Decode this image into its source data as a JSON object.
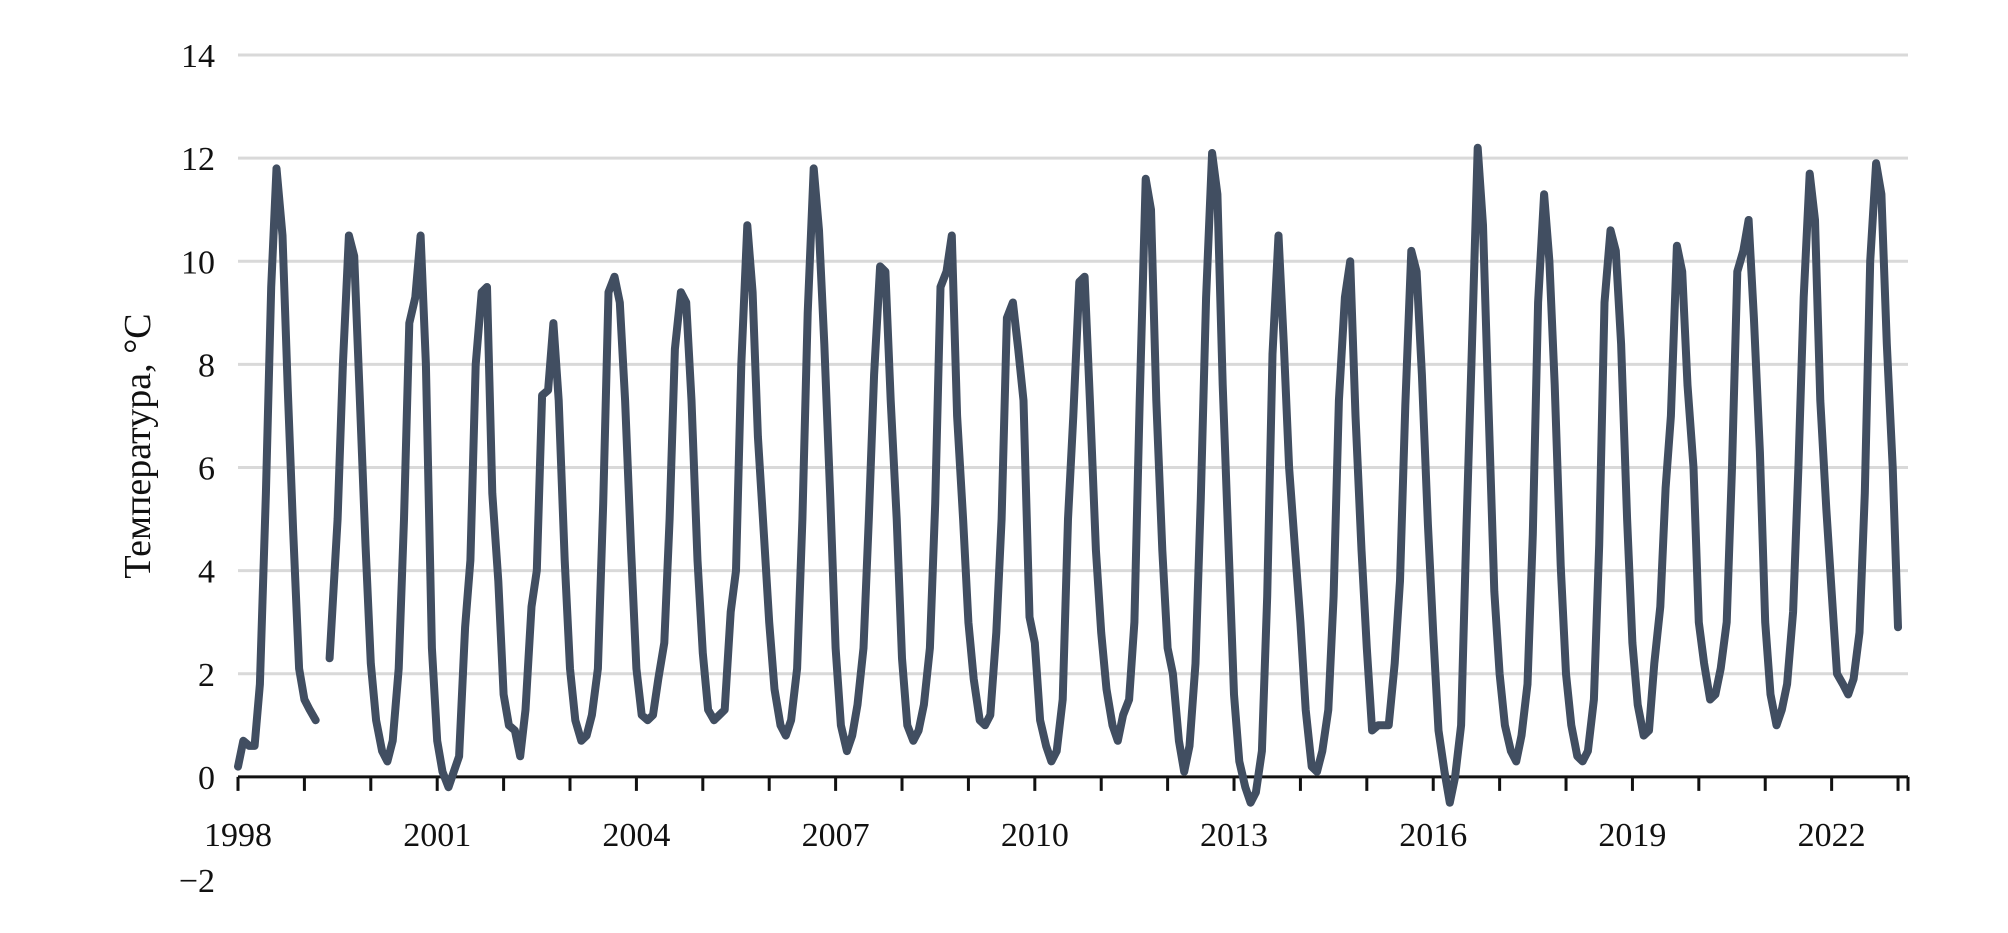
{
  "chart_data": {
    "type": "line",
    "ylabel": "Температура, °C",
    "xlabel": "",
    "title": "",
    "grid": true,
    "legend": "none",
    "ylim": [
      -2,
      14
    ],
    "yticks": [
      14,
      12,
      10,
      8,
      6,
      4,
      2,
      0,
      "−2"
    ],
    "xlim": [
      1998,
      2023.15
    ],
    "xticks": [
      "1998",
      "2001",
      "2004",
      "2007",
      "2010",
      "2013",
      "2016",
      "2019",
      "2022"
    ],
    "x_tick_years": [
      1998,
      2001,
      2004,
      2007,
      2010,
      2013,
      2016,
      2019,
      2022
    ],
    "series": [
      {
        "color": "#414e61",
        "points": [
          [
            1998.0,
            0.2
          ],
          [
            1998.08,
            0.7
          ],
          [
            1998.17,
            0.6
          ],
          [
            1998.25,
            0.6
          ],
          [
            1998.33,
            1.8
          ],
          [
            1998.42,
            5.5
          ],
          [
            1998.5,
            9.5
          ],
          [
            1998.58,
            11.8
          ],
          [
            1998.67,
            10.5
          ],
          [
            1998.75,
            7.5
          ],
          [
            1998.83,
            4.8
          ],
          [
            1998.92,
            2.1
          ],
          [
            1999.0,
            1.5
          ],
          [
            1999.08,
            1.3
          ],
          [
            1999.17,
            1.1
          ],
          null,
          [
            1999.38,
            2.3
          ],
          [
            1999.5,
            5.0
          ],
          [
            1999.58,
            8.0
          ],
          [
            1999.67,
            10.5
          ],
          [
            1999.75,
            10.1
          ],
          [
            1999.83,
            7.5
          ],
          [
            1999.92,
            4.5
          ],
          [
            2000.0,
            2.2
          ],
          [
            2000.08,
            1.1
          ],
          [
            2000.17,
            0.5
          ],
          [
            2000.25,
            0.3
          ],
          [
            2000.33,
            0.7
          ],
          [
            2000.42,
            2.1
          ],
          [
            2000.5,
            5.0
          ],
          [
            2000.58,
            8.8
          ],
          [
            2000.67,
            9.3
          ],
          [
            2000.75,
            10.5
          ],
          [
            2000.83,
            8.0
          ],
          [
            2000.92,
            2.5
          ],
          [
            2001.0,
            0.7
          ],
          [
            2001.08,
            0.1
          ],
          [
            2001.17,
            -0.2
          ],
          [
            2001.25,
            0.1
          ],
          [
            2001.33,
            0.4
          ],
          [
            2001.42,
            2.9
          ],
          [
            2001.5,
            4.2
          ],
          [
            2001.58,
            8.0
          ],
          [
            2001.67,
            9.4
          ],
          [
            2001.75,
            9.5
          ],
          [
            2001.83,
            5.5
          ],
          [
            2001.92,
            3.8
          ],
          [
            2002.0,
            1.6
          ],
          [
            2002.08,
            1.0
          ],
          [
            2002.17,
            0.9
          ],
          [
            2002.25,
            0.4
          ],
          [
            2002.33,
            1.3
          ],
          [
            2002.42,
            3.3
          ],
          [
            2002.5,
            4.0
          ],
          [
            2002.58,
            7.4
          ],
          [
            2002.67,
            7.5
          ],
          [
            2002.75,
            8.8
          ],
          [
            2002.83,
            7.3
          ],
          [
            2002.92,
            4.2
          ],
          [
            2003.0,
            2.1
          ],
          [
            2003.08,
            1.1
          ],
          [
            2003.17,
            0.7
          ],
          [
            2003.25,
            0.8
          ],
          [
            2003.33,
            1.2
          ],
          [
            2003.42,
            2.1
          ],
          [
            2003.5,
            5.3
          ],
          [
            2003.58,
            9.4
          ],
          [
            2003.67,
            9.7
          ],
          [
            2003.75,
            9.2
          ],
          [
            2003.83,
            7.3
          ],
          [
            2003.92,
            4.4
          ],
          [
            2004.0,
            2.1
          ],
          [
            2004.08,
            1.2
          ],
          [
            2004.17,
            1.1
          ],
          [
            2004.25,
            1.2
          ],
          [
            2004.33,
            1.9
          ],
          [
            2004.42,
            2.6
          ],
          [
            2004.5,
            5.0
          ],
          [
            2004.58,
            8.3
          ],
          [
            2004.67,
            9.4
          ],
          [
            2004.75,
            9.2
          ],
          [
            2004.83,
            7.3
          ],
          [
            2004.92,
            4.2
          ],
          [
            2005.0,
            2.4
          ],
          [
            2005.08,
            1.3
          ],
          [
            2005.17,
            1.1
          ],
          [
            2005.25,
            1.2
          ],
          [
            2005.33,
            1.3
          ],
          [
            2005.42,
            3.2
          ],
          [
            2005.5,
            4.0
          ],
          [
            2005.58,
            8.0
          ],
          [
            2005.67,
            10.7
          ],
          [
            2005.75,
            9.4
          ],
          [
            2005.83,
            6.6
          ],
          [
            2005.92,
            4.7
          ],
          [
            2006.0,
            3.0
          ],
          [
            2006.08,
            1.7
          ],
          [
            2006.17,
            1.0
          ],
          [
            2006.25,
            0.8
          ],
          [
            2006.33,
            1.1
          ],
          [
            2006.42,
            2.1
          ],
          [
            2006.5,
            5.0
          ],
          [
            2006.58,
            9.0
          ],
          [
            2006.67,
            11.8
          ],
          [
            2006.75,
            10.6
          ],
          [
            2006.83,
            8.4
          ],
          [
            2006.92,
            5.4
          ],
          [
            2007.0,
            2.5
          ],
          [
            2007.08,
            1.0
          ],
          [
            2007.17,
            0.5
          ],
          [
            2007.25,
            0.8
          ],
          [
            2007.33,
            1.4
          ],
          [
            2007.42,
            2.5
          ],
          [
            2007.5,
            5.0
          ],
          [
            2007.58,
            7.8
          ],
          [
            2007.67,
            9.9
          ],
          [
            2007.75,
            9.8
          ],
          [
            2007.83,
            7.3
          ],
          [
            2007.92,
            5.0
          ],
          [
            2008.0,
            2.3
          ],
          [
            2008.08,
            1.0
          ],
          [
            2008.17,
            0.7
          ],
          [
            2008.25,
            0.9
          ],
          [
            2008.33,
            1.4
          ],
          [
            2008.42,
            2.5
          ],
          [
            2008.5,
            5.3
          ],
          [
            2008.58,
            9.5
          ],
          [
            2008.67,
            9.8
          ],
          [
            2008.75,
            10.5
          ],
          [
            2008.83,
            7.0
          ],
          [
            2008.92,
            5.0
          ],
          [
            2009.0,
            3.0
          ],
          [
            2009.08,
            1.9
          ],
          [
            2009.17,
            1.1
          ],
          [
            2009.25,
            1.0
          ],
          [
            2009.33,
            1.2
          ],
          [
            2009.42,
            2.8
          ],
          [
            2009.5,
            5.0
          ],
          [
            2009.58,
            8.9
          ],
          [
            2009.67,
            9.2
          ],
          [
            2009.75,
            8.3
          ],
          [
            2009.83,
            7.3
          ],
          [
            2009.92,
            3.1
          ],
          [
            2010.0,
            2.6
          ],
          [
            2010.08,
            1.1
          ],
          [
            2010.17,
            0.6
          ],
          [
            2010.25,
            0.3
          ],
          [
            2010.33,
            0.5
          ],
          [
            2010.42,
            1.5
          ],
          [
            2010.5,
            5.0
          ],
          [
            2010.58,
            7.0
          ],
          [
            2010.67,
            9.6
          ],
          [
            2010.75,
            9.7
          ],
          [
            2010.83,
            7.3
          ],
          [
            2010.92,
            4.4
          ],
          [
            2011.0,
            2.8
          ],
          [
            2011.08,
            1.7
          ],
          [
            2011.17,
            1.0
          ],
          [
            2011.25,
            0.7
          ],
          [
            2011.33,
            1.2
          ],
          [
            2011.42,
            1.5
          ],
          [
            2011.5,
            3.0
          ],
          [
            2011.58,
            7.3
          ],
          [
            2011.67,
            11.6
          ],
          [
            2011.75,
            11.0
          ],
          [
            2011.83,
            7.3
          ],
          [
            2011.92,
            4.4
          ],
          [
            2012.0,
            2.5
          ],
          [
            2012.08,
            2.0
          ],
          [
            2012.17,
            0.7
          ],
          [
            2012.25,
            0.1
          ],
          [
            2012.33,
            0.6
          ],
          [
            2012.42,
            2.2
          ],
          [
            2012.5,
            5.4
          ],
          [
            2012.58,
            9.3
          ],
          [
            2012.67,
            12.1
          ],
          [
            2012.75,
            11.3
          ],
          [
            2012.83,
            7.6
          ],
          [
            2012.92,
            4.4
          ],
          [
            2013.0,
            1.6
          ],
          [
            2013.08,
            0.3
          ],
          [
            2013.17,
            -0.2
          ],
          [
            2013.25,
            -0.5
          ],
          [
            2013.33,
            -0.3
          ],
          [
            2013.42,
            0.5
          ],
          [
            2013.5,
            3.5
          ],
          [
            2013.58,
            8.2
          ],
          [
            2013.67,
            10.5
          ],
          [
            2013.75,
            8.4
          ],
          [
            2013.83,
            6.0
          ],
          [
            2013.92,
            4.4
          ],
          [
            2014.0,
            3.0
          ],
          [
            2014.08,
            1.3
          ],
          [
            2014.17,
            0.2
          ],
          [
            2014.25,
            0.1
          ],
          [
            2014.33,
            0.5
          ],
          [
            2014.42,
            1.3
          ],
          [
            2014.5,
            3.5
          ],
          [
            2014.58,
            7.3
          ],
          [
            2014.67,
            9.3
          ],
          [
            2014.75,
            10.0
          ],
          [
            2014.83,
            7.0
          ],
          [
            2014.92,
            4.4
          ],
          [
            2015.0,
            2.5
          ],
          [
            2015.08,
            0.9
          ],
          [
            2015.17,
            1.0
          ],
          [
            2015.25,
            1.0
          ],
          [
            2015.33,
            1.0
          ],
          [
            2015.42,
            2.2
          ],
          [
            2015.5,
            3.8
          ],
          [
            2015.58,
            7.2
          ],
          [
            2015.67,
            10.2
          ],
          [
            2015.75,
            9.8
          ],
          [
            2015.83,
            7.8
          ],
          [
            2015.92,
            4.9
          ],
          [
            2016.0,
            2.8
          ],
          [
            2016.08,
            0.9
          ],
          [
            2016.17,
            0.1
          ],
          [
            2016.25,
            -0.5
          ],
          [
            2016.33,
            0.0
          ],
          [
            2016.42,
            1.0
          ],
          [
            2016.5,
            4.8
          ],
          [
            2016.58,
            8.2
          ],
          [
            2016.67,
            12.2
          ],
          [
            2016.75,
            10.7
          ],
          [
            2016.83,
            7.3
          ],
          [
            2016.92,
            3.6
          ],
          [
            2017.0,
            2.0
          ],
          [
            2017.08,
            1.0
          ],
          [
            2017.17,
            0.5
          ],
          [
            2017.25,
            0.3
          ],
          [
            2017.33,
            0.8
          ],
          [
            2017.42,
            1.8
          ],
          [
            2017.5,
            4.7
          ],
          [
            2017.58,
            9.2
          ],
          [
            2017.67,
            11.3
          ],
          [
            2017.75,
            10.0
          ],
          [
            2017.83,
            7.6
          ],
          [
            2017.92,
            4.1
          ],
          [
            2018.0,
            2.0
          ],
          [
            2018.08,
            1.0
          ],
          [
            2018.17,
            0.4
          ],
          [
            2018.25,
            0.3
          ],
          [
            2018.33,
            0.5
          ],
          [
            2018.42,
            1.5
          ],
          [
            2018.5,
            4.5
          ],
          [
            2018.58,
            9.2
          ],
          [
            2018.67,
            10.6
          ],
          [
            2018.75,
            10.2
          ],
          [
            2018.83,
            8.4
          ],
          [
            2018.92,
            5.0
          ],
          [
            2019.0,
            2.6
          ],
          [
            2019.08,
            1.4
          ],
          [
            2019.17,
            0.8
          ],
          [
            2019.25,
            0.9
          ],
          [
            2019.33,
            2.2
          ],
          [
            2019.42,
            3.3
          ],
          [
            2019.5,
            5.6
          ],
          [
            2019.58,
            7.0
          ],
          [
            2019.67,
            10.3
          ],
          [
            2019.75,
            9.8
          ],
          [
            2019.83,
            7.6
          ],
          [
            2019.92,
            6.0
          ],
          [
            2020.0,
            3.0
          ],
          [
            2020.08,
            2.2
          ],
          [
            2020.17,
            1.5
          ],
          [
            2020.25,
            1.6
          ],
          [
            2020.33,
            2.1
          ],
          [
            2020.42,
            3.0
          ],
          [
            2020.5,
            6.0
          ],
          [
            2020.58,
            9.8
          ],
          [
            2020.67,
            10.2
          ],
          [
            2020.75,
            10.8
          ],
          [
            2020.83,
            8.9
          ],
          [
            2020.92,
            6.3
          ],
          [
            2021.0,
            3.0
          ],
          [
            2021.08,
            1.6
          ],
          [
            2021.17,
            1.0
          ],
          [
            2021.25,
            1.3
          ],
          [
            2021.33,
            1.8
          ],
          [
            2021.42,
            3.2
          ],
          [
            2021.5,
            6.0
          ],
          [
            2021.58,
            9.3
          ],
          [
            2021.67,
            11.7
          ],
          [
            2021.75,
            10.8
          ],
          [
            2021.83,
            7.3
          ],
          [
            2021.92,
            5.2
          ],
          [
            2022.0,
            3.6
          ],
          [
            2022.08,
            2.0
          ],
          [
            2022.17,
            1.8
          ],
          [
            2022.25,
            1.6
          ],
          [
            2022.33,
            1.9
          ],
          [
            2022.42,
            2.8
          ],
          [
            2022.5,
            5.5
          ],
          [
            2022.58,
            10.0
          ],
          [
            2022.67,
            11.9
          ],
          [
            2022.75,
            11.3
          ],
          [
            2022.83,
            8.4
          ],
          [
            2022.92,
            6.0
          ],
          [
            2023.0,
            2.9
          ]
        ]
      }
    ]
  }
}
